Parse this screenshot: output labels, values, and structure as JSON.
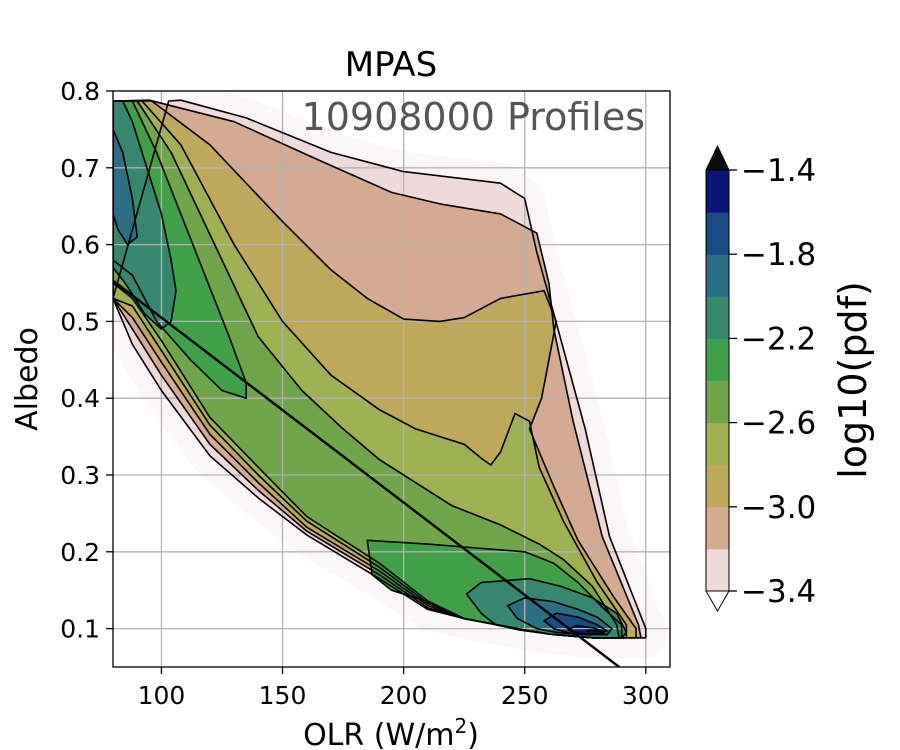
{
  "chart_data": {
    "type": "heatmap",
    "title": "MPAS",
    "annotation": "10908000 Profiles",
    "xlabel_main": "OLR (W/m",
    "xlabel_sup": "2",
    "xlabel_end": ")",
    "ylabel": "Albedo",
    "xlim": [
      80,
      310
    ],
    "ylim": [
      0.05,
      0.8
    ],
    "xticks": [
      {
        "v": 100,
        "label": "100"
      },
      {
        "v": 150,
        "label": "150"
      },
      {
        "v": 200,
        "label": "200"
      },
      {
        "v": 250,
        "label": "250"
      },
      {
        "v": 300,
        "label": "300"
      }
    ],
    "yticks": [
      {
        "v": 0.1,
        "label": "0.1"
      },
      {
        "v": 0.2,
        "label": "0.2"
      },
      {
        "v": 0.3,
        "label": "0.3"
      },
      {
        "v": 0.4,
        "label": "0.4"
      },
      {
        "v": 0.5,
        "label": "0.5"
      },
      {
        "v": 0.6,
        "label": "0.6"
      },
      {
        "v": 0.7,
        "label": "0.7"
      },
      {
        "v": 0.8,
        "label": "0.8"
      }
    ],
    "grid": true,
    "colorbar": {
      "label": "log10(pdf)",
      "range": [
        -3.4,
        -1.4
      ],
      "ticks": [
        {
          "v": -1.4,
          "label": "−1.4"
        },
        {
          "v": -1.8,
          "label": "−1.8"
        },
        {
          "v": -2.2,
          "label": "−2.2"
        },
        {
          "v": -2.6,
          "label": "−2.6"
        },
        {
          "v": -3.0,
          "label": "−3.0"
        },
        {
          "v": -3.4,
          "label": "−3.4"
        }
      ],
      "extend": "both",
      "colors": [
        "#efdadb",
        "#d4ab92",
        "#bda85c",
        "#9fb053",
        "#70a54b",
        "#409f48",
        "#36876d",
        "#2b6f84",
        "#1a4b82",
        "#0a157a"
      ],
      "over_color": "#0b0b0b",
      "under_color": "#ffffff"
    },
    "fit_line": {
      "x": [
        80,
        289
      ],
      "y": [
        0.553,
        0.05
      ]
    },
    "levels": [
      {
        "level": -3.4,
        "poly": [
          [
            103,
            0.787
          ],
          [
            108,
            0.788
          ],
          [
            135,
            0.765
          ],
          [
            170,
            0.72
          ],
          [
            200,
            0.695
          ],
          [
            240,
            0.68
          ],
          [
            250,
            0.66
          ],
          [
            255,
            0.59
          ],
          [
            262,
            0.51
          ],
          [
            275,
            0.36
          ],
          [
            285,
            0.22
          ],
          [
            300,
            0.1
          ],
          [
            300,
            0.088
          ],
          [
            278,
            0.088
          ],
          [
            260,
            0.093
          ],
          [
            250,
            0.098
          ],
          [
            225,
            0.113
          ],
          [
            210,
            0.125
          ],
          [
            190,
            0.165
          ],
          [
            160,
            0.222
          ],
          [
            140,
            0.27
          ],
          [
            120,
            0.325
          ],
          [
            100,
            0.41
          ],
          [
            88,
            0.47
          ],
          [
            80,
            0.53
          ]
        ]
      },
      {
        "level": -3.2,
        "poly": [
          [
            80,
            0.787
          ],
          [
            95,
            0.788
          ],
          [
            130,
            0.76
          ],
          [
            165,
            0.71
          ],
          [
            195,
            0.668
          ],
          [
            215,
            0.653
          ],
          [
            240,
            0.64
          ],
          [
            255,
            0.615
          ],
          [
            260,
            0.55
          ],
          [
            262,
            0.49
          ],
          [
            270,
            0.37
          ],
          [
            282,
            0.22
          ],
          [
            297,
            0.105
          ],
          [
            298,
            0.088
          ],
          [
            278,
            0.088
          ],
          [
            260,
            0.093
          ],
          [
            250,
            0.098
          ],
          [
            225,
            0.113
          ],
          [
            210,
            0.127
          ],
          [
            190,
            0.17
          ],
          [
            160,
            0.227
          ],
          [
            140,
            0.28
          ],
          [
            120,
            0.34
          ],
          [
            100,
            0.43
          ],
          [
            88,
            0.49
          ],
          [
            80,
            0.53
          ]
        ]
      },
      {
        "level": -3.0,
        "poly": [
          [
            80,
            0.787
          ],
          [
            96,
            0.787
          ],
          [
            120,
            0.73
          ],
          [
            150,
            0.63
          ],
          [
            170,
            0.567
          ],
          [
            185,
            0.53
          ],
          [
            200,
            0.503
          ],
          [
            215,
            0.5
          ],
          [
            225,
            0.505
          ],
          [
            240,
            0.53
          ],
          [
            258,
            0.54
          ],
          [
            263,
            0.5
          ],
          [
            257,
            0.4
          ],
          [
            252,
            0.36
          ],
          [
            262,
            0.285
          ],
          [
            272,
            0.215
          ],
          [
            287,
            0.14
          ],
          [
            296,
            0.1
          ],
          [
            296,
            0.088
          ],
          [
            278,
            0.088
          ],
          [
            260,
            0.093
          ],
          [
            250,
            0.098
          ],
          [
            225,
            0.113
          ],
          [
            210,
            0.13
          ],
          [
            190,
            0.175
          ],
          [
            160,
            0.232
          ],
          [
            140,
            0.29
          ],
          [
            120,
            0.353
          ],
          [
            100,
            0.447
          ],
          [
            88,
            0.505
          ],
          [
            80,
            0.53
          ]
        ]
      },
      {
        "level": -2.8,
        "poly": [
          [
            80,
            0.787
          ],
          [
            92,
            0.787
          ],
          [
            108,
            0.73
          ],
          [
            130,
            0.6
          ],
          [
            150,
            0.5
          ],
          [
            170,
            0.43
          ],
          [
            190,
            0.385
          ],
          [
            205,
            0.36
          ],
          [
            215,
            0.35
          ],
          [
            225,
            0.34
          ],
          [
            232,
            0.322
          ],
          [
            236,
            0.313
          ],
          [
            240,
            0.33
          ],
          [
            246,
            0.38
          ],
          [
            252,
            0.37
          ],
          [
            256,
            0.31
          ],
          [
            266,
            0.24
          ],
          [
            280,
            0.16
          ],
          [
            292,
            0.105
          ],
          [
            292,
            0.088
          ],
          [
            278,
            0.088
          ],
          [
            260,
            0.093
          ],
          [
            250,
            0.098
          ],
          [
            225,
            0.113
          ],
          [
            210,
            0.133
          ],
          [
            190,
            0.18
          ],
          [
            160,
            0.24
          ],
          [
            140,
            0.3
          ],
          [
            120,
            0.365
          ],
          [
            100,
            0.462
          ],
          [
            88,
            0.52
          ],
          [
            80,
            0.53
          ]
        ]
      },
      {
        "level": -2.6,
        "poly": [
          [
            80,
            0.787
          ],
          [
            90,
            0.787
          ],
          [
            104,
            0.72
          ],
          [
            122,
            0.6
          ],
          [
            140,
            0.48
          ],
          [
            158,
            0.41
          ],
          [
            175,
            0.36
          ],
          [
            190,
            0.32
          ],
          [
            205,
            0.29
          ],
          [
            220,
            0.26
          ],
          [
            240,
            0.235
          ],
          [
            256,
            0.21
          ],
          [
            266,
            0.19
          ],
          [
            278,
            0.155
          ],
          [
            288,
            0.105
          ],
          [
            289,
            0.088
          ],
          [
            278,
            0.088
          ],
          [
            260,
            0.093
          ],
          [
            250,
            0.098
          ],
          [
            225,
            0.113
          ],
          [
            210,
            0.136
          ],
          [
            190,
            0.185
          ],
          [
            160,
            0.246
          ],
          [
            140,
            0.31
          ],
          [
            120,
            0.375
          ],
          [
            100,
            0.475
          ],
          [
            88,
            0.53
          ],
          [
            80,
            0.55
          ]
        ]
      },
      {
        "level": -2.4,
        "poly": [
          [
            80,
            0.787
          ],
          [
            88,
            0.787
          ],
          [
            98,
            0.72
          ],
          [
            108,
            0.64
          ],
          [
            118,
            0.56
          ],
          [
            128,
            0.48
          ],
          [
            135,
            0.42
          ],
          [
            135,
            0.4
          ],
          [
            125,
            0.41
          ],
          [
            112,
            0.45
          ],
          [
            98,
            0.5
          ],
          [
            88,
            0.56
          ],
          [
            80,
            0.58
          ]
        ]
      },
      {
        "level": -2.4,
        "poly": [
          [
            185,
            0.215
          ],
          [
            210,
            0.21
          ],
          [
            230,
            0.205
          ],
          [
            250,
            0.2
          ],
          [
            262,
            0.185
          ],
          [
            272,
            0.16
          ],
          [
            282,
            0.128
          ],
          [
            290,
            0.105
          ],
          [
            290,
            0.088
          ],
          [
            278,
            0.088
          ],
          [
            260,
            0.093
          ],
          [
            250,
            0.098
          ],
          [
            225,
            0.113
          ],
          [
            210,
            0.135
          ],
          [
            195,
            0.15
          ],
          [
            187,
            0.17
          ]
        ]
      },
      {
        "level": -2.2,
        "poly": [
          [
            80,
            0.787
          ],
          [
            84,
            0.787
          ],
          [
            88,
            0.76
          ],
          [
            94,
            0.7
          ],
          [
            100,
            0.64
          ],
          [
            104,
            0.58
          ],
          [
            106,
            0.54
          ],
          [
            104,
            0.5
          ],
          [
            100,
            0.49
          ],
          [
            93,
            0.51
          ],
          [
            85,
            0.55
          ],
          [
            80,
            0.57
          ]
        ]
      },
      {
        "level": -2.2,
        "poly": [
          [
            232,
            0.16
          ],
          [
            252,
            0.165
          ],
          [
            265,
            0.155
          ],
          [
            278,
            0.14
          ],
          [
            288,
            0.12
          ],
          [
            292,
            0.095
          ],
          [
            290,
            0.088
          ],
          [
            278,
            0.088
          ],
          [
            262,
            0.092
          ],
          [
            248,
            0.098
          ],
          [
            238,
            0.105
          ],
          [
            232,
            0.12
          ],
          [
            226,
            0.145
          ]
        ]
      },
      {
        "level": -2.0,
        "poly": [
          [
            80,
            0.75
          ],
          [
            84,
            0.72
          ],
          [
            88,
            0.66
          ],
          [
            90,
            0.61
          ],
          [
            86,
            0.6
          ],
          [
            82,
            0.62
          ],
          [
            80,
            0.64
          ]
        ]
      },
      {
        "level": -2.0,
        "poly": [
          [
            250,
            0.14
          ],
          [
            262,
            0.135
          ],
          [
            272,
            0.125
          ],
          [
            280,
            0.115
          ],
          [
            286,
            0.1
          ],
          [
            284,
            0.092
          ],
          [
            275,
            0.092
          ],
          [
            263,
            0.095
          ],
          [
            255,
            0.1
          ],
          [
            247,
            0.113
          ],
          [
            243,
            0.13
          ]
        ]
      },
      {
        "level": -1.8,
        "poly": [
          [
            263,
            0.12
          ],
          [
            272,
            0.115
          ],
          [
            280,
            0.105
          ],
          [
            284,
            0.097
          ],
          [
            280,
            0.093
          ],
          [
            270,
            0.093
          ],
          [
            262,
            0.1
          ],
          [
            258,
            0.11
          ]
        ]
      },
      {
        "level": -1.6,
        "poly": [
          [
            271,
            0.104
          ],
          [
            278,
            0.101
          ],
          [
            283,
            0.096
          ],
          [
            281,
            0.093
          ],
          [
            274,
            0.093
          ],
          [
            268,
            0.098
          ]
        ]
      },
      {
        "level": -1.4,
        "poly": [
          [
            276,
            0.098
          ],
          [
            281,
            0.097
          ],
          [
            283,
            0.093
          ],
          [
            277,
            0.093
          ]
        ]
      }
    ]
  }
}
